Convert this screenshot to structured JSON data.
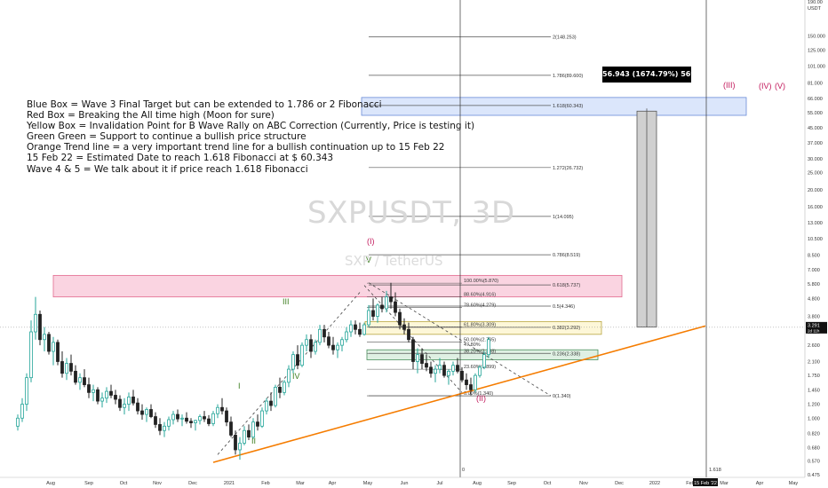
{
  "chart_data": {
    "type": "candlestick",
    "watermark": "SXPUSDT, 3D",
    "watermark_sub": "SXP / TetherUS",
    "y_scale": "log",
    "ylim": [
      0.46,
      235
    ],
    "price_axis_unit": "USDT",
    "price_axis_top_label": "190.00",
    "price_ticks": [
      "0.475",
      "0.570",
      "0.680",
      "0.820",
      "1.000",
      "1.200",
      "1.450",
      "1.750",
      "2.100",
      "2.600",
      "3.100",
      "3.800",
      "4.800",
      "5.800",
      "7.000",
      "8.500",
      "10.500",
      "13.000",
      "16.000",
      "20.000",
      "25.000",
      "30.000",
      "37.000",
      "45.000",
      "55.000",
      "66.000",
      "81.000",
      "101.000",
      "125.000",
      "150.000"
    ],
    "current_price": "3.291",
    "current_price_sub": "2d 11h",
    "time_ticks": [
      "Aug",
      "Sep",
      "Oct",
      "Nov",
      "Dec",
      "2021",
      "Feb",
      "Mar",
      "Apr",
      "May",
      "Jun",
      "Jul",
      "Aug",
      "Sep",
      "Oct",
      "Nov",
      "Dec",
      "2022",
      "Feb",
      "15 Feb '22",
      "Mar",
      "Apr",
      "May"
    ],
    "notes": [
      "Blue Box = Wave 3 Final Target but can be extended to 1.786 or 2 Fibonacci",
      "Red Box = Breaking the All time high (Moon for sure)",
      "Yellow Box = Invalidation Point for B Wave Rally on ABC Correction (Currently, Price is testing it)",
      "Green Green = Support to continue a bullish price structure",
      "Orange Trend line = a very important trend line for a bullish continuation up to 15 Feb 22",
      "15 Feb 22 = Estimated Date to reach 1.618 Fibonacci at $ 60.343",
      "Wave 4 & 5 = We talk about it if price reach 1.618 Fibonacci"
    ],
    "measure_label": "56.943 (1674.79%) 56943",
    "fib_extension": [
      {
        "label": "0(1.340)",
        "value": 1.34
      },
      {
        "label": "0.236(2.338)",
        "value": 2.338
      },
      {
        "label": "0.382(3.292)",
        "value": 3.292
      },
      {
        "label": "0.5(4.346)",
        "value": 4.346
      },
      {
        "label": "0.618(5.737)",
        "value": 5.737
      },
      {
        "label": "0.786(8.519)",
        "value": 8.519
      },
      {
        "label": "1(14.095)",
        "value": 14.095
      },
      {
        "label": "1.272(26.732)",
        "value": 26.732
      },
      {
        "label": "1.618(60.343)",
        "value": 60.343
      },
      {
        "label": "1.786(89.600)",
        "value": 89.6
      },
      {
        "label": "2(148.253)",
        "value": 148.253
      }
    ],
    "fib_retracement": [
      {
        "label": "100.00%(5.870)",
        "value": 5.87
      },
      {
        "label": "88.60%(4.916)",
        "value": 4.916
      },
      {
        "label": "78.60%(4.279)",
        "value": 4.279
      },
      {
        "label": "61.80%(3.309)",
        "value": 3.309
      },
      {
        "label": "50.00%(2.705)",
        "value": 2.705
      },
      {
        "label": "38.20%(2.338)",
        "value": 2.338
      },
      {
        "label": "23.60%(1.899)",
        "value": 1.899
      },
      {
        "label": "0.00%(1.340)",
        "value": 1.34
      }
    ],
    "extra_labels": {
      "retrace_47": "47.80%",
      "bottom_zero": "0",
      "date_fib": "1.618"
    },
    "wave_labels": [
      {
        "text": "I",
        "color": "#3a7d1e"
      },
      {
        "text": "II",
        "color": "#3a7d1e"
      },
      {
        "text": "III",
        "color": "#3a7d1e"
      },
      {
        "text": "IV",
        "color": "#3a7d1e"
      },
      {
        "text": "V",
        "color": "#3a7d1e"
      },
      {
        "text": "(I)",
        "color": "#c2185b"
      },
      {
        "text": "(II)",
        "color": "#c2185b"
      },
      {
        "text": "(III)",
        "color": "#c2185b"
      },
      {
        "text": "(IV)",
        "color": "#c2185b"
      },
      {
        "text": "(V)",
        "color": "#c2185b"
      }
    ],
    "colors": {
      "up": "#26a69a",
      "down": "#222222",
      "trendline": "#f57c00",
      "blue_box": "#dbe6fb",
      "red_box": "#fad4e1",
      "yellow_box": "#fdf7d8",
      "green_box": "#dff0e3",
      "label_bg": "#000000"
    },
    "ohlc": [
      [
        0.9,
        1.05,
        0.85,
        1.0
      ],
      [
        1.0,
        1.3,
        0.95,
        1.2
      ],
      [
        1.2,
        1.8,
        1.1,
        1.7
      ],
      [
        1.7,
        3.6,
        1.6,
        3.1
      ],
      [
        3.1,
        4.9,
        2.8,
        3.9
      ],
      [
        3.9,
        4.1,
        2.6,
        2.8
      ],
      [
        2.8,
        3.3,
        2.4,
        3.0
      ],
      [
        3.0,
        3.1,
        2.3,
        2.4
      ],
      [
        2.4,
        2.9,
        2.0,
        2.7
      ],
      [
        2.7,
        2.8,
        2.0,
        2.1
      ],
      [
        2.1,
        2.4,
        1.7,
        1.8
      ],
      [
        1.8,
        2.2,
        1.65,
        2.05
      ],
      [
        2.05,
        2.3,
        1.75,
        1.85
      ],
      [
        1.85,
        2.0,
        1.55,
        1.6
      ],
      [
        1.6,
        1.8,
        1.45,
        1.7
      ],
      [
        1.7,
        1.9,
        1.5,
        1.55
      ],
      [
        1.55,
        1.7,
        1.3,
        1.4
      ],
      [
        1.4,
        1.55,
        1.25,
        1.45
      ],
      [
        1.45,
        1.5,
        1.2,
        1.25
      ],
      [
        1.25,
        1.4,
        1.15,
        1.3
      ],
      [
        1.3,
        1.5,
        1.22,
        1.42
      ],
      [
        1.42,
        1.55,
        1.3,
        1.35
      ],
      [
        1.35,
        1.45,
        1.2,
        1.28
      ],
      [
        1.28,
        1.35,
        1.1,
        1.15
      ],
      [
        1.15,
        1.3,
        1.05,
        1.2
      ],
      [
        1.2,
        1.4,
        1.1,
        1.32
      ],
      [
        1.32,
        1.45,
        1.18,
        1.22
      ],
      [
        1.22,
        1.3,
        1.05,
        1.1
      ],
      [
        1.1,
        1.2,
        0.98,
        1.05
      ],
      [
        1.05,
        1.15,
        0.95,
        1.12
      ],
      [
        1.12,
        1.2,
        1.0,
        1.02
      ],
      [
        1.02,
        1.08,
        0.88,
        0.92
      ],
      [
        0.92,
        1.0,
        0.8,
        0.85
      ],
      [
        0.85,
        0.95,
        0.78,
        0.9
      ],
      [
        0.9,
        1.02,
        0.85,
        0.98
      ],
      [
        0.98,
        1.1,
        0.92,
        1.05
      ],
      [
        1.05,
        1.12,
        0.95,
        0.99
      ],
      [
        0.99,
        1.05,
        0.9,
        1.0
      ],
      [
        1.0,
        1.08,
        0.93,
        0.96
      ],
      [
        0.96,
        1.0,
        0.88,
        0.94
      ],
      [
        0.94,
        0.98,
        0.85,
        0.97
      ],
      [
        0.97,
        1.05,
        0.92,
        1.02
      ],
      [
        1.02,
        1.1,
        0.95,
        0.99
      ],
      [
        0.99,
        1.04,
        0.9,
        0.93
      ],
      [
        0.93,
        1.1,
        0.9,
        1.06
      ],
      [
        1.06,
        1.2,
        1.0,
        1.15
      ],
      [
        1.15,
        1.3,
        1.05,
        1.1
      ],
      [
        1.1,
        1.15,
        0.9,
        0.95
      ],
      [
        0.95,
        1.02,
        0.78,
        0.8
      ],
      [
        0.8,
        0.85,
        0.62,
        0.66
      ],
      [
        0.66,
        0.78,
        0.58,
        0.72
      ],
      [
        0.72,
        0.9,
        0.7,
        0.85
      ],
      [
        0.85,
        0.92,
        0.75,
        0.78
      ],
      [
        0.78,
        1.0,
        0.76,
        0.95
      ],
      [
        0.95,
        1.05,
        0.85,
        0.9
      ],
      [
        0.9,
        1.15,
        0.88,
        1.1
      ],
      [
        1.1,
        1.3,
        1.05,
        1.25
      ],
      [
        1.25,
        1.4,
        1.1,
        1.18
      ],
      [
        1.18,
        1.55,
        1.15,
        1.5
      ],
      [
        1.5,
        1.7,
        1.3,
        1.4
      ],
      [
        1.4,
        1.65,
        1.35,
        1.6
      ],
      [
        1.6,
        2.0,
        1.5,
        1.9
      ],
      [
        1.9,
        2.4,
        1.8,
        2.3
      ],
      [
        2.3,
        2.6,
        1.9,
        2.0
      ],
      [
        2.0,
        2.7,
        1.95,
        2.6
      ],
      [
        2.6,
        3.0,
        2.4,
        2.8
      ],
      [
        2.8,
        3.0,
        2.2,
        2.4
      ],
      [
        2.4,
        2.8,
        2.3,
        2.7
      ],
      [
        2.7,
        3.4,
        2.6,
        3.2
      ],
      [
        3.2,
        3.4,
        2.7,
        2.9
      ],
      [
        2.9,
        3.1,
        2.5,
        2.6
      ],
      [
        2.6,
        2.9,
        2.3,
        2.45
      ],
      [
        2.45,
        2.7,
        2.2,
        2.6
      ],
      [
        2.6,
        2.9,
        2.4,
        2.8
      ],
      [
        2.8,
        3.3,
        2.7,
        3.1
      ],
      [
        3.1,
        3.6,
        2.9,
        3.4
      ],
      [
        3.4,
        3.6,
        3.0,
        3.2
      ],
      [
        3.2,
        3.5,
        2.9,
        3.0
      ],
      [
        3.0,
        3.5,
        2.95,
        3.4
      ],
      [
        3.4,
        4.4,
        3.3,
        4.1
      ],
      [
        4.1,
        4.8,
        3.6,
        3.8
      ],
      [
        3.8,
        4.5,
        3.5,
        4.4
      ],
      [
        4.4,
        4.9,
        4.0,
        4.2
      ],
      [
        4.2,
        5.3,
        4.0,
        4.9
      ],
      [
        4.9,
        5.9,
        4.2,
        4.6
      ],
      [
        4.6,
        5.2,
        3.8,
        4.0
      ],
      [
        4.0,
        4.2,
        3.2,
        3.4
      ],
      [
        3.4,
        3.7,
        3.0,
        3.2
      ],
      [
        3.2,
        3.5,
        2.7,
        2.8
      ],
      [
        2.8,
        2.9,
        1.9,
        2.1
      ],
      [
        2.1,
        2.5,
        1.8,
        2.3
      ],
      [
        2.3,
        2.5,
        1.9,
        2.05
      ],
      [
        2.05,
        2.3,
        1.85,
        1.95
      ],
      [
        1.95,
        2.1,
        1.7,
        1.8
      ],
      [
        1.8,
        2.0,
        1.6,
        1.9
      ],
      [
        1.9,
        2.2,
        1.8,
        2.0
      ],
      [
        2.0,
        2.1,
        1.7,
        1.75
      ],
      [
        1.75,
        1.9,
        1.55,
        1.85
      ],
      [
        1.85,
        2.1,
        1.75,
        2.0
      ],
      [
        2.0,
        2.2,
        1.8,
        1.85
      ],
      [
        1.85,
        1.95,
        1.6,
        1.65
      ],
      [
        1.65,
        1.8,
        1.45,
        1.55
      ],
      [
        1.55,
        1.7,
        1.35,
        1.45
      ],
      [
        1.45,
        1.8,
        1.4,
        1.75
      ],
      [
        1.75,
        2.0,
        1.7,
        1.95
      ],
      [
        1.95,
        2.4,
        1.9,
        2.3
      ],
      [
        2.3,
        2.9,
        2.2,
        2.8
      ]
    ]
  }
}
